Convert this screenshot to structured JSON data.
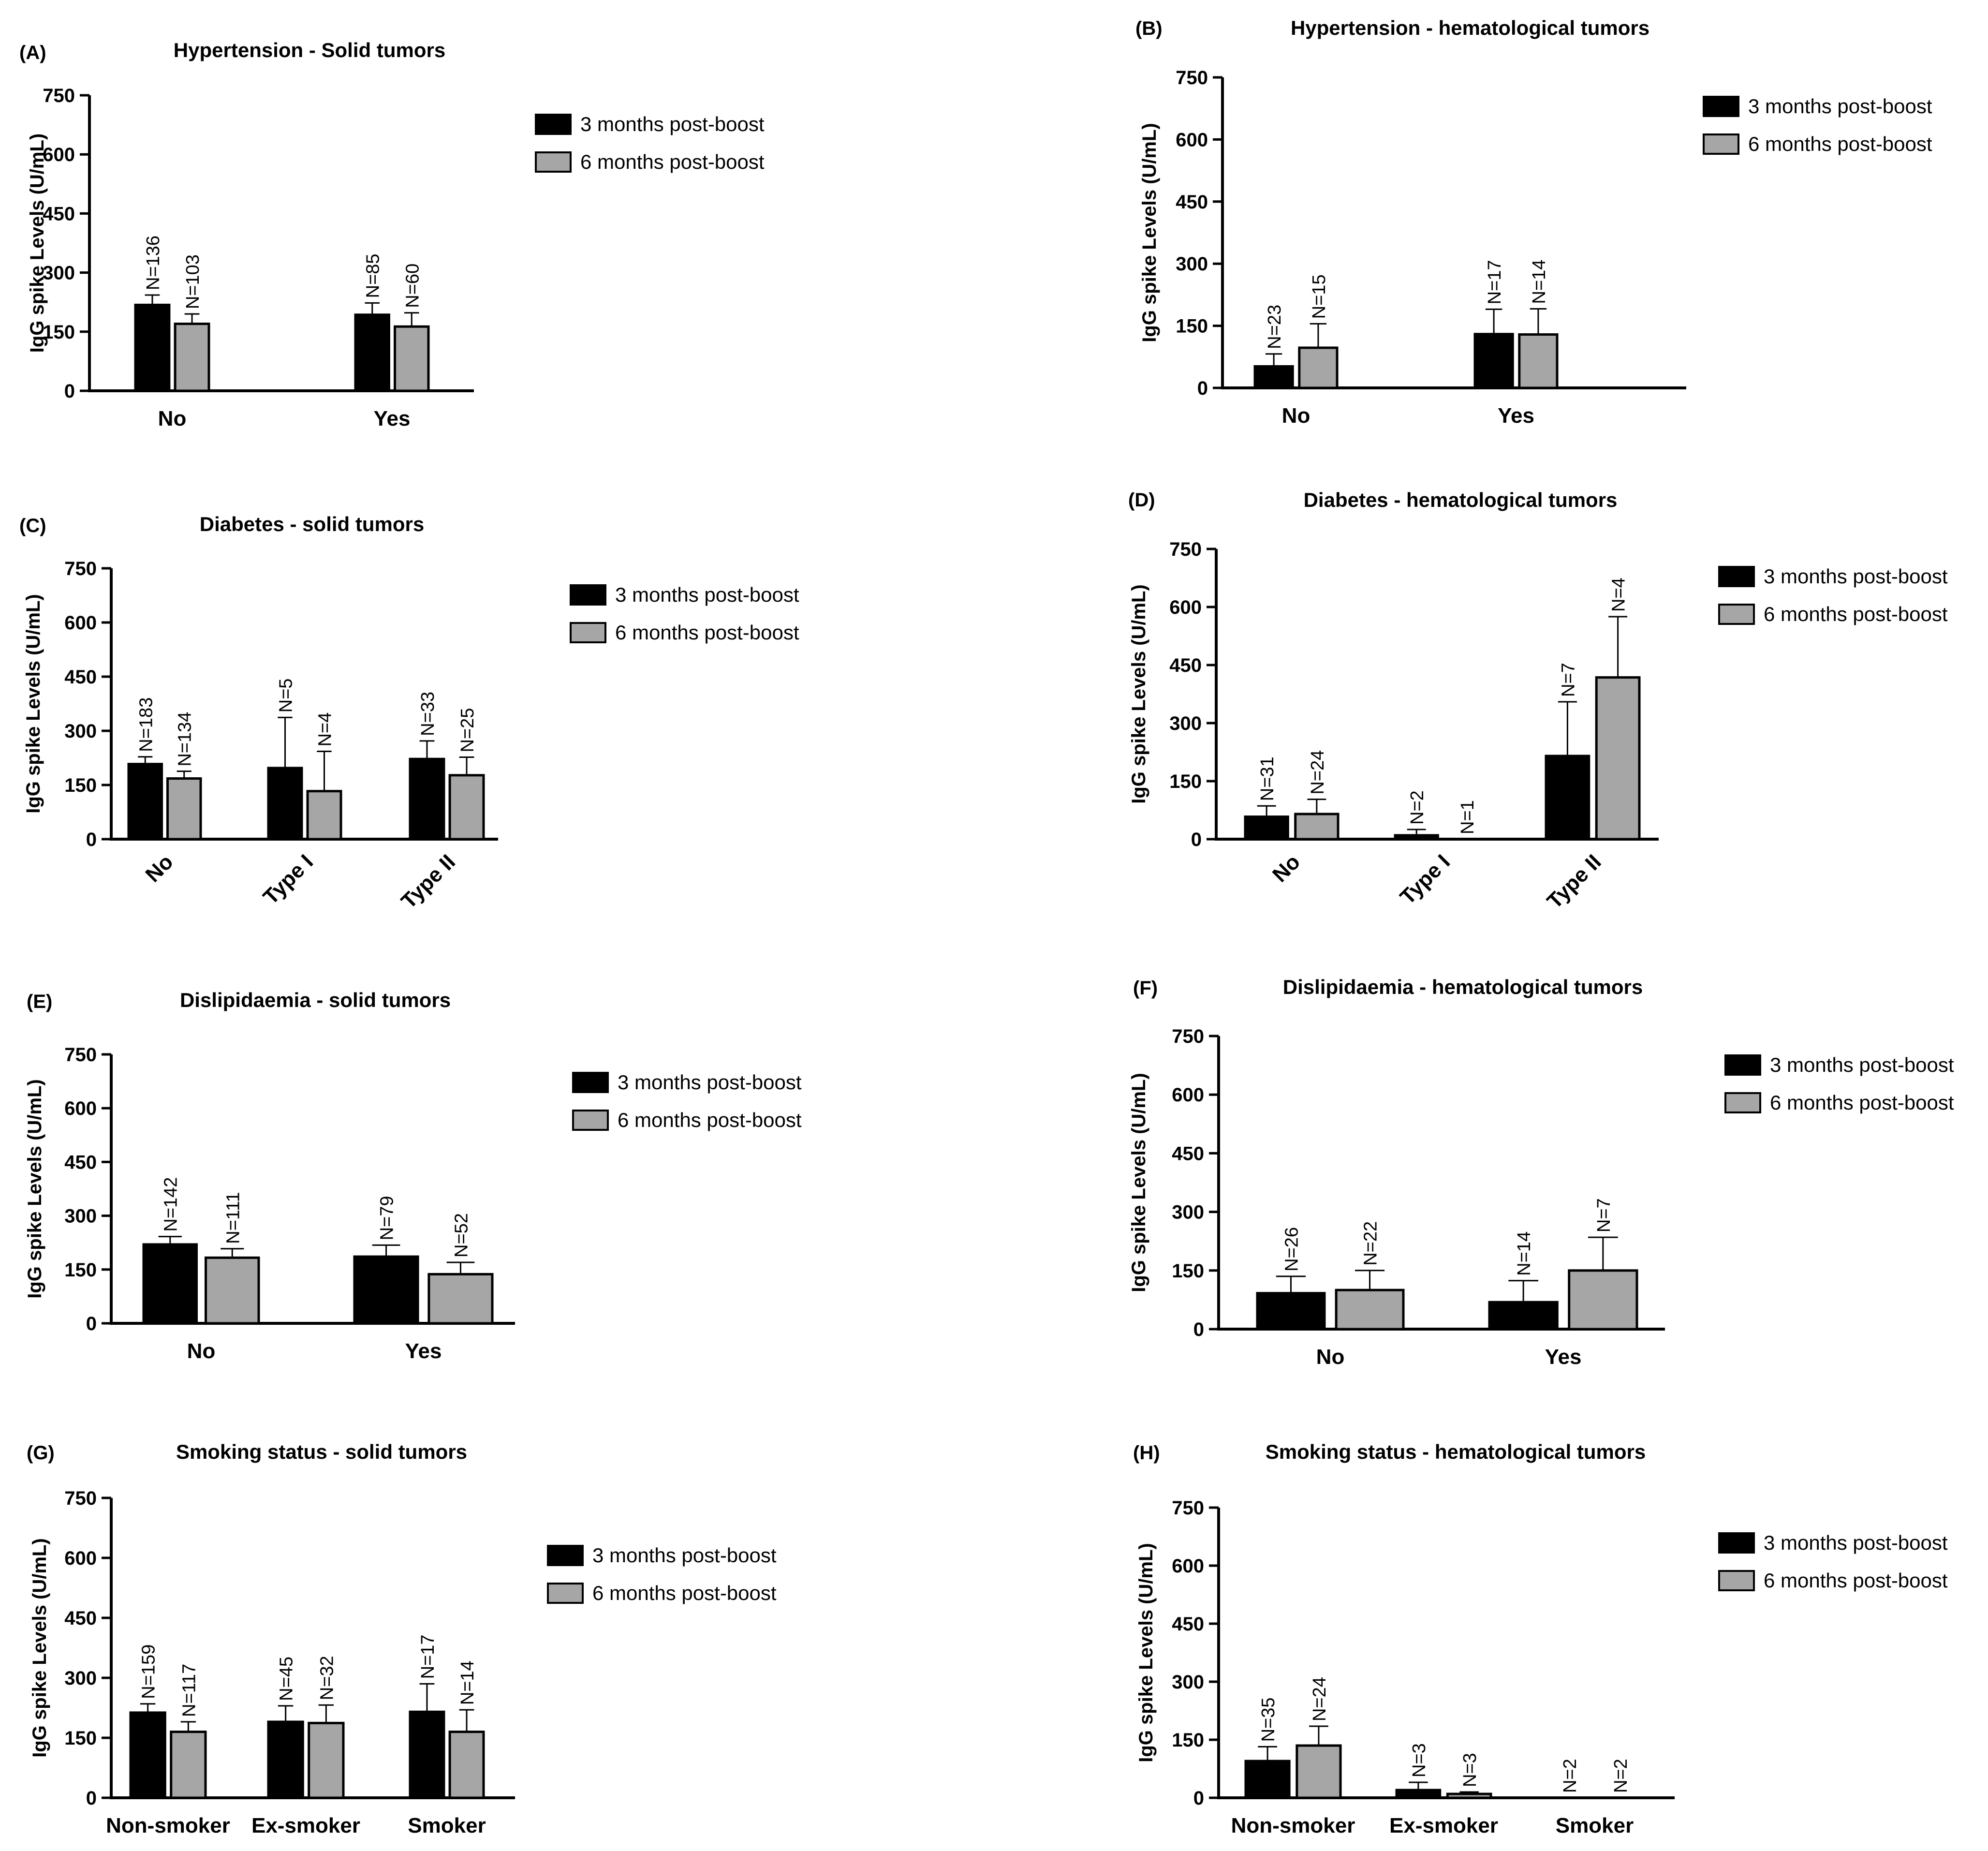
{
  "figure": {
    "legend_3m": "3 months post-boost",
    "legend_6m": "6 months post-boost"
  },
  "colors": {
    "series_3m": "#000000",
    "series_6m": "#a6a6a6",
    "axis": "#000000"
  },
  "chart_data": [
    {
      "panel": "(A)",
      "title": "Hypertension - Solid tumors",
      "type": "bar",
      "ylabel": "IgG spike Levels (U/mL)",
      "ylim": [
        0,
        750
      ],
      "yticks": [
        0,
        150,
        300,
        450,
        600,
        750
      ],
      "categories": [
        "No",
        "Yes"
      ],
      "rotate_categories": false,
      "series": [
        {
          "name": "3 months post-boost",
          "values": [
            218,
            193
          ],
          "errors": [
            25,
            30
          ],
          "n": [
            "N=136",
            "N=85"
          ]
        },
        {
          "name": "6 months post-boost",
          "values": [
            170,
            163
          ],
          "errors": [
            25,
            35
          ],
          "n": [
            "N=103",
            "N=60"
          ]
        }
      ]
    },
    {
      "panel": "(B)",
      "title": "Hypertension - hematological tumors",
      "type": "bar",
      "ylabel": "IgG spike Levels (U/mL)",
      "ylim": [
        0,
        750
      ],
      "yticks": [
        0,
        150,
        300,
        450,
        600,
        750
      ],
      "categories": [
        "No",
        "Yes"
      ],
      "rotate_categories": false,
      "series": [
        {
          "name": "3 months post-boost",
          "values": [
            52,
            130
          ],
          "errors": [
            30,
            60
          ],
          "n": [
            "N=23",
            "N=17"
          ]
        },
        {
          "name": "6 months post-boost",
          "values": [
            97,
            129
          ],
          "errors": [
            58,
            62
          ],
          "n": [
            "N=15",
            "N=14"
          ]
        }
      ]
    },
    {
      "panel": "(C)",
      "title": "Diabetes - solid tumors",
      "type": "bar",
      "ylabel": "IgG spike Levels (U/mL)",
      "ylim": [
        0,
        750
      ],
      "yticks": [
        0,
        150,
        300,
        450,
        600,
        750
      ],
      "categories": [
        "No",
        "Type I",
        "Type II"
      ],
      "rotate_categories": true,
      "series": [
        {
          "name": "3 months post-boost",
          "values": [
            208,
            197,
            222
          ],
          "errors": [
            20,
            140,
            50
          ],
          "n": [
            "N=183",
            "N=5",
            "N=33"
          ]
        },
        {
          "name": "6 months post-boost",
          "values": [
            168,
            133,
            177
          ],
          "errors": [
            20,
            110,
            50
          ],
          "n": [
            "N=134",
            "N=4",
            "N=25"
          ]
        }
      ]
    },
    {
      "panel": "(D)",
      "title": "Diabetes - hematological tumors",
      "type": "bar",
      "ylabel": "IgG spike Levels (U/mL)",
      "ylim": [
        0,
        750
      ],
      "yticks": [
        0,
        150,
        300,
        450,
        600,
        750
      ],
      "categories": [
        "No",
        "Type I",
        "Type II"
      ],
      "rotate_categories": true,
      "series": [
        {
          "name": "3 months post-boost",
          "values": [
            58,
            10,
            215
          ],
          "errors": [
            28,
            15,
            140
          ],
          "n": [
            "N=31",
            "N=2",
            "N=7"
          ]
        },
        {
          "name": "6 months post-boost",
          "values": [
            65,
            0,
            418
          ],
          "errors": [
            38,
            0,
            157
          ],
          "n": [
            "N=24",
            "N=1",
            "N=4"
          ]
        }
      ]
    },
    {
      "panel": "(E)",
      "title": "Dislipidaemia - solid tumors",
      "type": "bar",
      "ylabel": "IgG spike Levels (U/mL)",
      "ylim": [
        0,
        750
      ],
      "yticks": [
        0,
        150,
        300,
        450,
        600,
        750
      ],
      "categories": [
        "No",
        "Yes"
      ],
      "rotate_categories": false,
      "series": [
        {
          "name": "3 months post-boost",
          "values": [
            220,
            186
          ],
          "errors": [
            22,
            32
          ],
          "n": [
            "N=142",
            "N=79"
          ]
        },
        {
          "name": "6 months post-boost",
          "values": [
            183,
            137
          ],
          "errors": [
            25,
            33
          ],
          "n": [
            "N=111",
            "N=52"
          ]
        }
      ]
    },
    {
      "panel": "(F)",
      "title": "Dislipidaemia - hematological tumors",
      "type": "bar",
      "ylabel": "IgG spike Levels (U/mL)",
      "ylim": [
        0,
        750
      ],
      "yticks": [
        0,
        150,
        300,
        450,
        600,
        750
      ],
      "categories": [
        "No",
        "Yes"
      ],
      "rotate_categories": false,
      "series": [
        {
          "name": "3 months post-boost",
          "values": [
            92,
            69
          ],
          "errors": [
            43,
            55
          ],
          "n": [
            "N=26",
            "N=14"
          ]
        },
        {
          "name": "6 months post-boost",
          "values": [
            100,
            150
          ],
          "errors": [
            50,
            85
          ],
          "n": [
            "N=22",
            "N=7"
          ]
        }
      ]
    },
    {
      "panel": "(G)",
      "title": "Smoking status - solid tumors",
      "type": "bar",
      "ylabel": "IgG spike Levels (U/mL)",
      "ylim": [
        0,
        750
      ],
      "yticks": [
        0,
        150,
        300,
        450,
        600,
        750
      ],
      "categories": [
        "Non-smoker",
        "Ex-smoker",
        "Smoker"
      ],
      "rotate_categories": false,
      "series": [
        {
          "name": "3 months post-boost",
          "values": [
            213,
            190,
            215
          ],
          "errors": [
            22,
            40,
            70
          ],
          "n": [
            "N=159",
            "N=45",
            "N=17"
          ]
        },
        {
          "name": "6 months post-boost",
          "values": [
            165,
            187,
            165
          ],
          "errors": [
            25,
            45,
            55
          ],
          "n": [
            "N=117",
            "N=32",
            "N=14"
          ]
        }
      ]
    },
    {
      "panel": "(H)",
      "title": "Smoking status - hematological tumors",
      "type": "bar",
      "ylabel": "IgG spike Levels (U/mL)",
      "ylim": [
        0,
        750
      ],
      "yticks": [
        0,
        150,
        300,
        450,
        600,
        750
      ],
      "categories": [
        "Non-smoker",
        "Ex-smoker",
        "Smoker"
      ],
      "rotate_categories": false,
      "series": [
        {
          "name": "3 months post-boost",
          "values": [
            95,
            20,
            0
          ],
          "errors": [
            37,
            20,
            0
          ],
          "n": [
            "N=35",
            "N=3",
            "N=2"
          ]
        },
        {
          "name": "6 months post-boost",
          "values": [
            135,
            10,
            0
          ],
          "errors": [
            50,
            5,
            0
          ],
          "n": [
            "N=24",
            "N=3",
            "N=2"
          ]
        }
      ]
    }
  ]
}
